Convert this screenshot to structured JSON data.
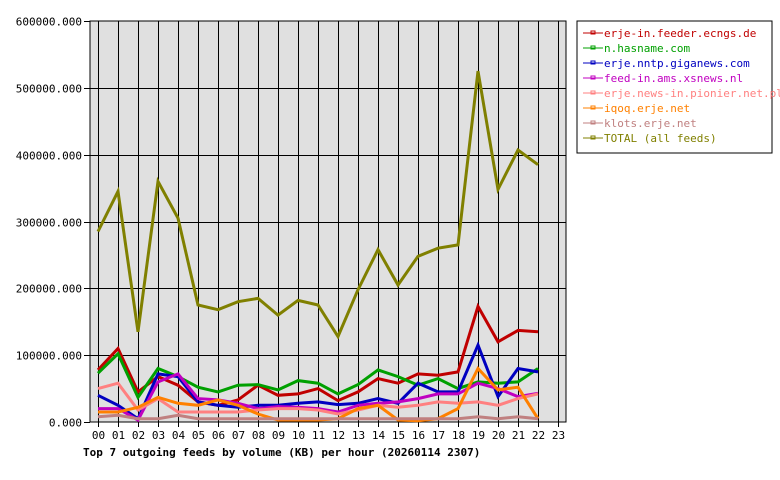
{
  "chart_data": {
    "type": "line",
    "title": "Top 7 outgoing feeds by volume (KB) per hour (20260114 2307)",
    "xlabel": "",
    "ylabel": "",
    "ylim": [
      0,
      600000
    ],
    "y_ticks": [
      "0.000",
      "100000.000",
      "200000.000",
      "300000.000",
      "400000.000",
      "500000.000",
      "600000.000"
    ],
    "y_tick_values": [
      0,
      100000,
      200000,
      300000,
      400000,
      500000,
      600000
    ],
    "x": [
      "00",
      "01",
      "02",
      "03",
      "04",
      "05",
      "06",
      "07",
      "08",
      "09",
      "10",
      "11",
      "12",
      "13",
      "14",
      "15",
      "16",
      "17",
      "18",
      "19",
      "20",
      "21",
      "22",
      "23"
    ],
    "grid": true,
    "legend_position": "right",
    "plot_background": "#e0e0e0",
    "series": [
      {
        "name": "erje-in.feeder.ecngs.de",
        "color": "#c00000",
        "values": [
          78000,
          110000,
          45000,
          68000,
          55000,
          30000,
          25000,
          33000,
          55000,
          40000,
          42000,
          50000,
          32000,
          45000,
          65000,
          58000,
          72000,
          70000,
          75000,
          173000,
          120000,
          137000,
          135000
        ]
      },
      {
        "name": "n.hasname.com",
        "color": "#00a000",
        "values": [
          73000,
          102000,
          37000,
          80000,
          68000,
          52000,
          45000,
          55000,
          56000,
          48000,
          62000,
          58000,
          42000,
          56000,
          78000,
          68000,
          55000,
          65000,
          50000,
          60000,
          58000,
          60000,
          80000
        ]
      },
      {
        "name": "erje.nntp.giganews.com",
        "color": "#0000c0",
        "values": [
          40000,
          25000,
          5000,
          72000,
          68000,
          30000,
          25000,
          22000,
          25000,
          25000,
          28000,
          30000,
          26000,
          28000,
          35000,
          28000,
          58000,
          45000,
          45000,
          115000,
          38000,
          80000,
          75000
        ]
      },
      {
        "name": "feed-in.ams.xsnews.nl",
        "color": "#c000c0",
        "values": [
          20000,
          20000,
          3000,
          60000,
          72000,
          35000,
          33000,
          28000,
          20000,
          23000,
          22000,
          20000,
          15000,
          25000,
          28000,
          30000,
          35000,
          42000,
          42000,
          58000,
          50000,
          38000,
          43000
        ]
      },
      {
        "name": "erje.news-in.pionier.net.pl",
        "color": "#ff8080",
        "values": [
          50000,
          58000,
          18000,
          35000,
          15000,
          15000,
          15000,
          15000,
          18000,
          20000,
          20000,
          18000,
          12000,
          18000,
          25000,
          22000,
          25000,
          30000,
          28000,
          30000,
          25000,
          35000,
          42000
        ]
      },
      {
        "name": "iqoq.erje.net",
        "color": "#ff8000",
        "values": [
          15000,
          15000,
          22000,
          37000,
          28000,
          25000,
          33000,
          25000,
          12000,
          3000,
          3000,
          3000,
          5000,
          20000,
          25000,
          3000,
          2000,
          5000,
          20000,
          80000,
          48000,
          52000,
          5000
        ]
      },
      {
        "name": "klots.erje.net",
        "color": "#c08080",
        "values": [
          8000,
          10000,
          5000,
          5000,
          10000,
          5000,
          5000,
          5000,
          5000,
          5000,
          5000,
          5000,
          5000,
          5000,
          5000,
          5000,
          5000,
          5000,
          5000,
          8000,
          5000,
          8000,
          5000
        ]
      },
      {
        "name": "TOTAL (all feeds)",
        "color": "#808000",
        "values": [
          285000,
          345000,
          135000,
          360000,
          305000,
          175000,
          168000,
          180000,
          185000,
          160000,
          182000,
          175000,
          128000,
          198000,
          258000,
          205000,
          248000,
          260000,
          265000,
          525000,
          348000,
          407000,
          385000
        ]
      }
    ]
  }
}
